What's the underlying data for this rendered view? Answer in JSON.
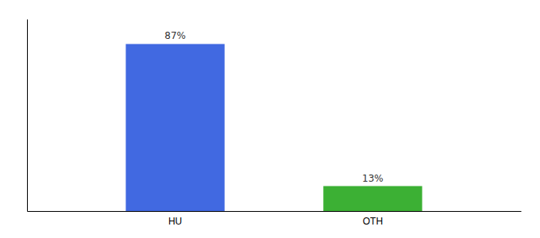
{
  "chart_data": {
    "type": "bar",
    "categories": [
      "HU",
      "OTH"
    ],
    "values": [
      87,
      13
    ],
    "colors": [
      "#4169e1",
      "#3cb034"
    ],
    "value_labels": [
      "87%",
      "13%"
    ],
    "data_labels": true,
    "ylim": [
      0,
      100
    ],
    "tick_labels": "x",
    "grid": false
  }
}
